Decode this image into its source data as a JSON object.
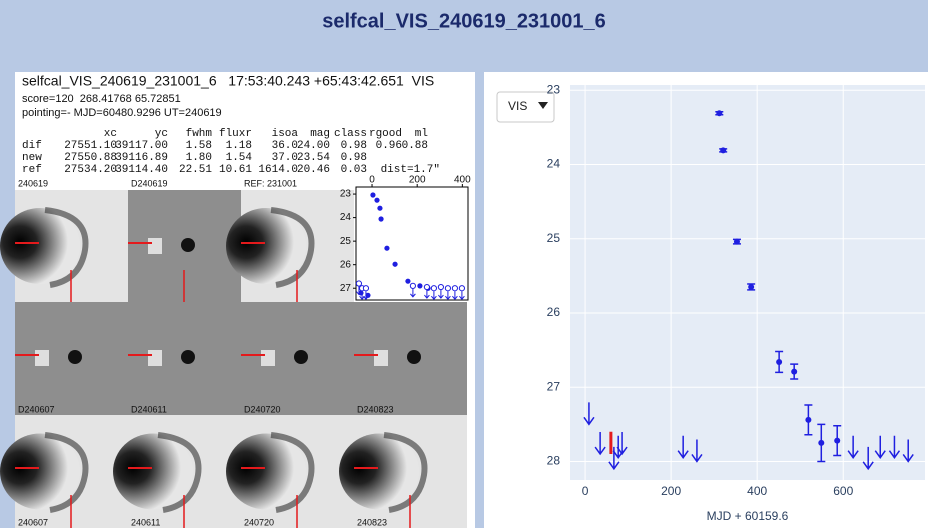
{
  "header": {
    "title": "selfcal_VIS_240619_231001_6"
  },
  "summary": {
    "line1": "selfcal_VIS_240619_231001_6   17:53:40.243 +65:43:42.651  VIS",
    "line2": "score=120  268.41768 65.72851",
    "line3": "pointing=- MJD=60480.9296 UT=240619"
  },
  "table": {
    "columns": [
      "xc",
      "yc",
      "fwhm",
      "fluxr",
      "isoa",
      "mag",
      "class",
      "rgood",
      "ml"
    ],
    "rows": [
      {
        "label": "dif",
        "cells": [
          "27551.10",
          "39117.00",
          "1.58",
          "1.18",
          "36.0",
          "24.00",
          "0.98",
          "0.96",
          "0.88"
        ]
      },
      {
        "label": "new",
        "cells": [
          "27550.88",
          "39116.89",
          "1.80",
          "1.54",
          "37.0",
          "23.54",
          "0.98"
        ]
      },
      {
        "label": "ref",
        "cells": [
          "27534.20",
          "39114.40",
          "22.51",
          "10.61",
          "1614.0",
          "20.46",
          "0.03"
        ],
        "note": "dist=1.7\""
      }
    ]
  },
  "thumbnails": [
    [
      "240619",
      "D240619",
      "REF: 231001"
    ],
    [
      "D240607",
      "D240611",
      "D240720",
      "D240823"
    ],
    [
      "240607",
      "240611",
      "240720",
      "240823"
    ]
  ],
  "filter_select": {
    "label": "VIS"
  },
  "chart_data": [
    {
      "type": "scatter",
      "xlim": [
        -71,
        425
      ],
      "ylim": [
        22.7,
        27.5
      ],
      "y_reversed": true,
      "xticks": [
        0,
        200,
        400
      ],
      "yticks": [
        23,
        24,
        25,
        26,
        27
      ],
      "series": [
        {
          "marker": "filled",
          "color": "#1f1fe0",
          "x": [
            4,
            22,
            35,
            40,
            66,
            102,
            159,
            212,
            248,
            -49,
            -18
          ],
          "values": [
            23.04,
            23.26,
            23.6,
            24.06,
            25.3,
            25.98,
            26.7,
            26.9,
            27.0,
            27.2,
            27.3
          ]
        },
        {
          "marker": "open-arrow",
          "color": "#1f1fe0",
          "x": [
            -58,
            -44,
            -27,
            181,
            243,
            274,
            305,
            336,
            367,
            398
          ],
          "values": [
            26.8,
            27.0,
            27.0,
            26.9,
            26.95,
            27.0,
            26.95,
            27.0,
            27.0,
            27.0
          ]
        }
      ]
    },
    {
      "type": "scatter",
      "x_label": "MJD + 60159.6",
      "xlim": [
        -35,
        790
      ],
      "ylim": [
        22.93,
        28.25
      ],
      "y_reversed": true,
      "xticks": [
        0,
        200,
        400,
        600
      ],
      "yticks": [
        23,
        24,
        25,
        26,
        27,
        28
      ],
      "grid": true,
      "series": [
        {
          "marker": "errorbar",
          "color": "#1f1fe0",
          "x": [
            312,
            321,
            353,
            386,
            451,
            486,
            519,
            549,
            586
          ],
          "values": [
            23.31,
            23.81,
            25.04,
            25.65,
            26.66,
            26.79,
            27.44,
            27.75,
            27.72
          ],
          "errors": [
            0.02,
            0.02,
            0.03,
            0.04,
            0.14,
            0.1,
            0.2,
            0.25,
            0.2
          ]
        },
        {
          "marker": "arrow-down",
          "color": "#1f1fe0",
          "x": [
            9,
            35,
            67,
            77,
            86,
            228,
            260,
            623,
            658,
            686,
            719,
            751
          ],
          "values": [
            27.5,
            27.9,
            28.1,
            27.95,
            27.9,
            27.95,
            28.0,
            27.95,
            28.1,
            27.95,
            27.95,
            28.0
          ]
        },
        {
          "marker": "bar",
          "color": "#e41a1c",
          "x": [
            60
          ],
          "values": [
            27.75
          ],
          "errors": [
            0.15
          ]
        }
      ]
    }
  ]
}
